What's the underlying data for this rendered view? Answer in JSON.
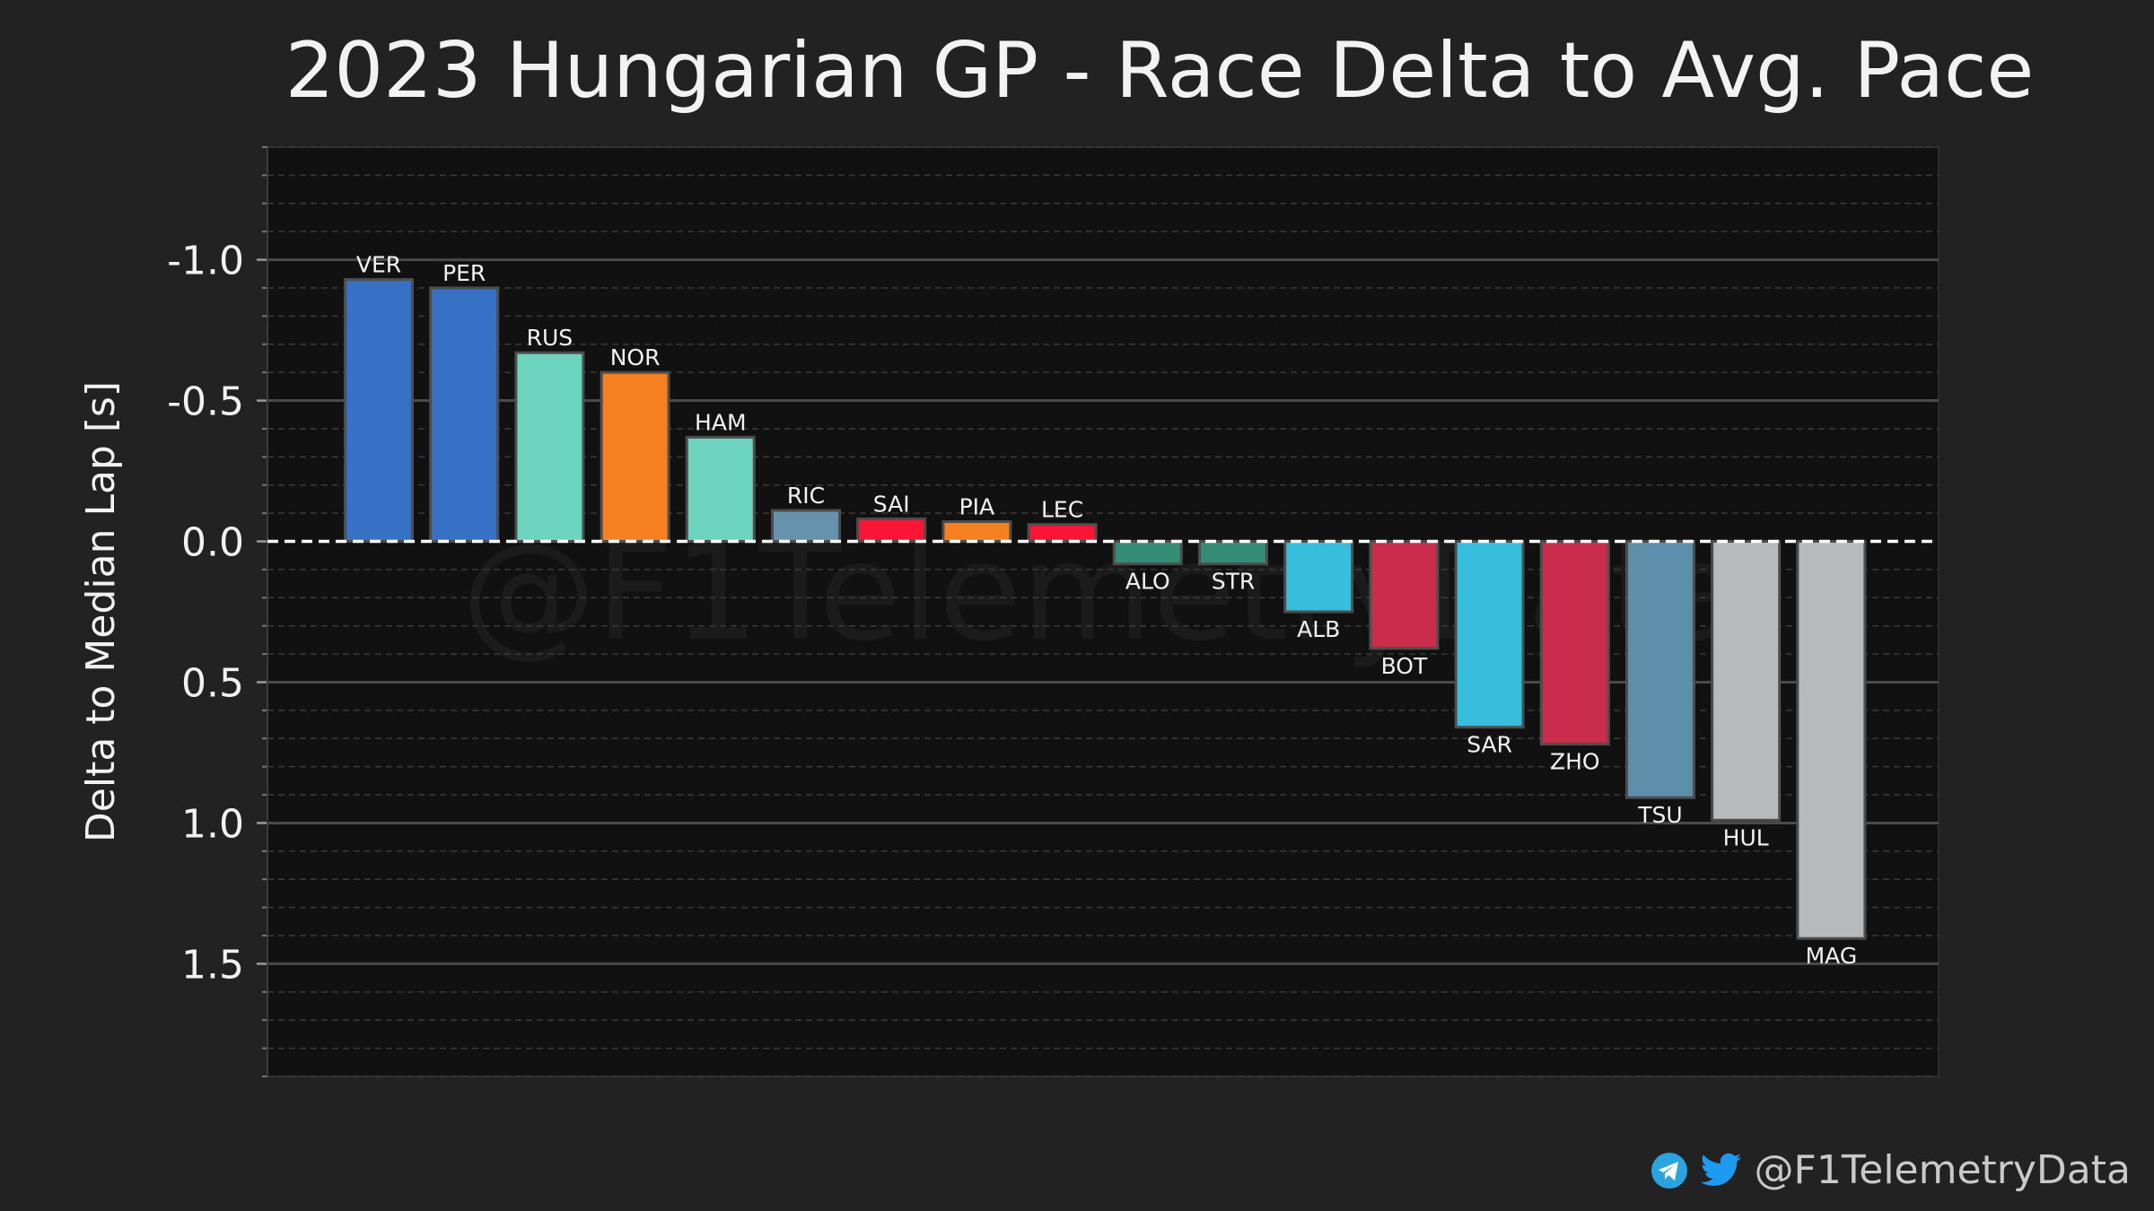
{
  "chart_data": {
    "type": "bar",
    "title": "2023 Hungarian GP - Race Delta to Avg. Pace",
    "ylabel": "Delta to Median Lap [s]",
    "y_axis_inverted": true,
    "ylim": [
      -1.4,
      1.9
    ],
    "yticks": [
      -1.0,
      -0.5,
      0.0,
      0.5,
      1.0,
      1.5
    ],
    "ytick_labels": [
      "-1.0",
      "-0.5",
      "0.0",
      "0.5",
      "1.0",
      "1.5"
    ],
    "grid": true,
    "reference_line": 0.0,
    "categories": [
      "VER",
      "PER",
      "RUS",
      "NOR",
      "HAM",
      "RIC",
      "SAI",
      "PIA",
      "LEC",
      "ALO",
      "STR",
      "ALB",
      "BOT",
      "SAR",
      "ZHO",
      "TSU",
      "HUL",
      "MAG"
    ],
    "values": [
      -0.93,
      -0.9,
      -0.67,
      -0.6,
      -0.37,
      -0.11,
      -0.08,
      -0.07,
      -0.06,
      0.08,
      0.08,
      0.25,
      0.38,
      0.66,
      0.72,
      0.91,
      0.99,
      1.41
    ],
    "colors": [
      "#3671C6",
      "#3671C6",
      "#6CD3BF",
      "#F58020",
      "#6CD3BF",
      "#6692AD",
      "#F91536",
      "#F58020",
      "#F91536",
      "#358C75",
      "#358C75",
      "#37BEDD",
      "#C92D4B",
      "#37BEDD",
      "#C92D4B",
      "#5E8FAA",
      "#B6BABD",
      "#B6BABD"
    ]
  },
  "watermark": "@F1TelemetryData",
  "footer": {
    "handle": "@F1TelemetryData",
    "icons": [
      "telegram-icon",
      "twitter-icon"
    ],
    "telegram_color": "#2AA3DF",
    "twitter_color": "#1D9BF0"
  }
}
